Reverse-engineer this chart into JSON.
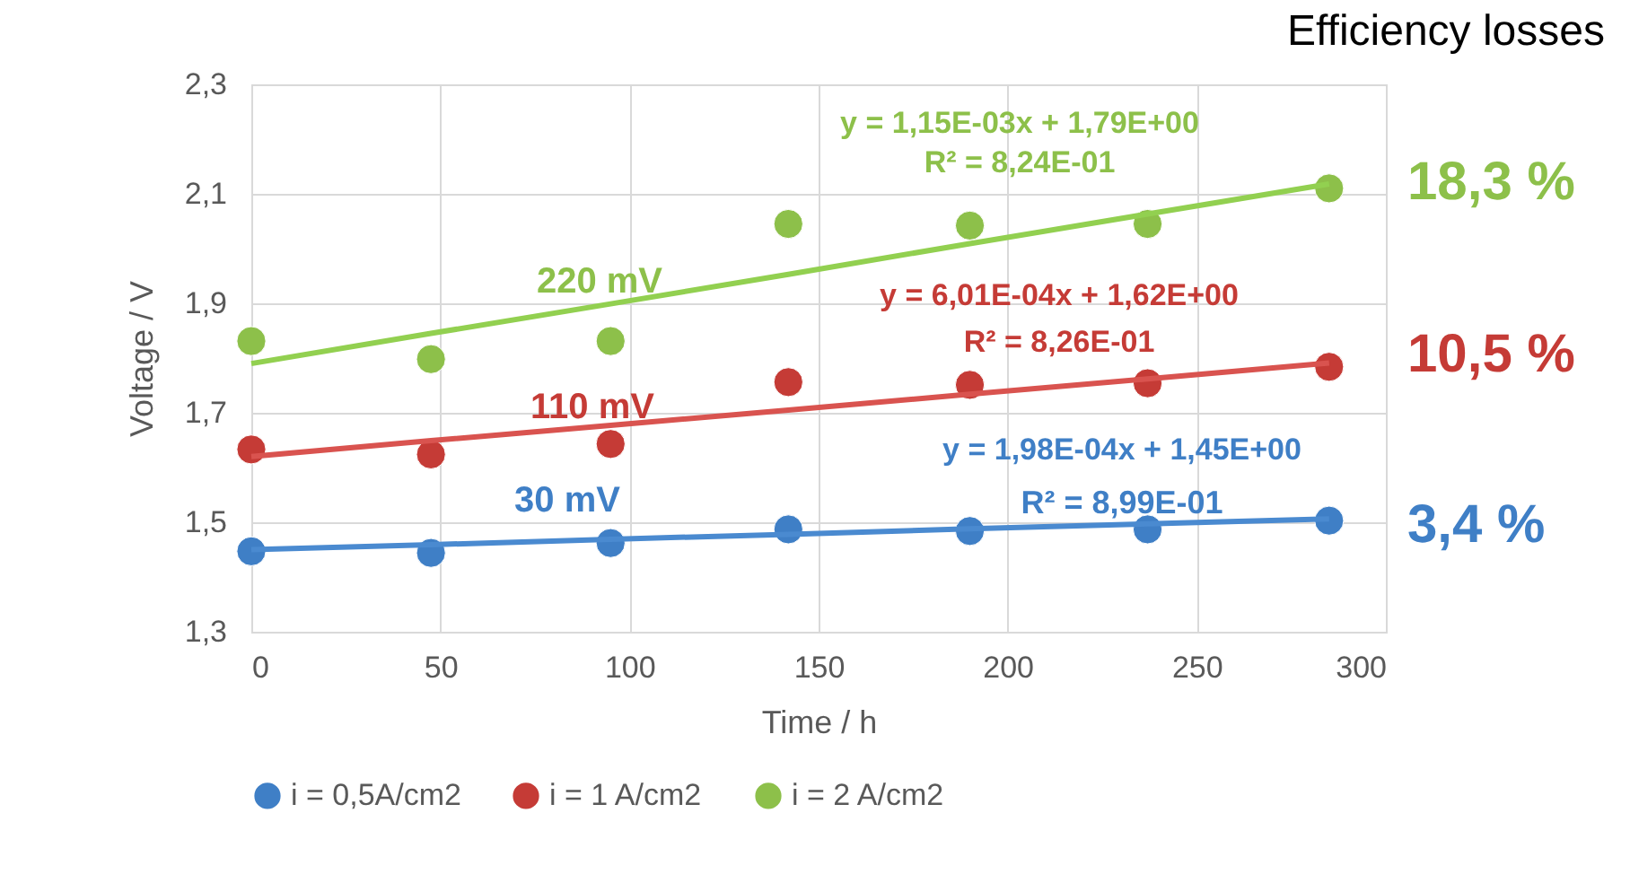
{
  "chart_data": {
    "type": "scatter",
    "title": "Efficiency losses",
    "xlabel": "Time  / h",
    "ylabel": "Voltage / V",
    "xlim": [
      0,
      300
    ],
    "xticks": [
      0,
      50,
      100,
      150,
      200,
      250,
      300
    ],
    "ylim": [
      1.3,
      2.3
    ],
    "yticks": [
      {
        "value": 1.3,
        "label": "1,3"
      },
      {
        "value": 1.5,
        "label": "1,5"
      },
      {
        "value": 1.7,
        "label": "1,7"
      },
      {
        "value": 1.9,
        "label": "1,9"
      },
      {
        "value": 2.1,
        "label": "2,1"
      },
      {
        "value": 2.3,
        "label": "2,3"
      }
    ],
    "grid": true,
    "legend": "bottom",
    "marker": "circle",
    "x": [
      0,
      47.5,
      95,
      142,
      190,
      237,
      285
    ],
    "series": [
      {
        "name": "i = 0,5A/cm2",
        "color": "#3f7fc6",
        "values": [
          1.447,
          1.444,
          1.462,
          1.487,
          1.484,
          1.487,
          1.503
        ]
      },
      {
        "name": "i = 1 A/cm2",
        "color": "#c53b36",
        "values": [
          1.633,
          1.624,
          1.643,
          1.756,
          1.751,
          1.754,
          1.784
        ]
      },
      {
        "name": "i = 2 A/cm2",
        "color": "#8dc04a",
        "values": [
          1.831,
          1.798,
          1.831,
          2.045,
          2.042,
          2.045,
          2.11
        ]
      },
      {
        "type": "line",
        "color": "#4a8ad0",
        "marker": "none",
        "values": [
          1.45,
          1.459,
          1.469,
          1.478,
          1.488,
          1.497,
          1.506
        ]
      },
      {
        "type": "line",
        "color": "#d9534f",
        "marker": "none",
        "values": [
          1.62,
          1.649,
          1.677,
          1.705,
          1.734,
          1.762,
          1.791
        ]
      },
      {
        "type": "line",
        "color": "#92d050",
        "marker": "none",
        "values": [
          1.79,
          1.845,
          1.899,
          1.953,
          2.009,
          2.063,
          2.118
        ]
      }
    ],
    "annotations": [
      "y = 1,15E-03x + 1,79E+00",
      "R² = 8,24E-01",
      "y = 6,01E-04x + 1,62E+00",
      "R² = 8,26E-01",
      "y = 1,98E-04x + 1,45E+00",
      "R² = 8,99E-01",
      "220 mV",
      "110 mV",
      "30 mV",
      "18,3 %",
      "10,5 %",
      "3,4 %"
    ]
  }
}
